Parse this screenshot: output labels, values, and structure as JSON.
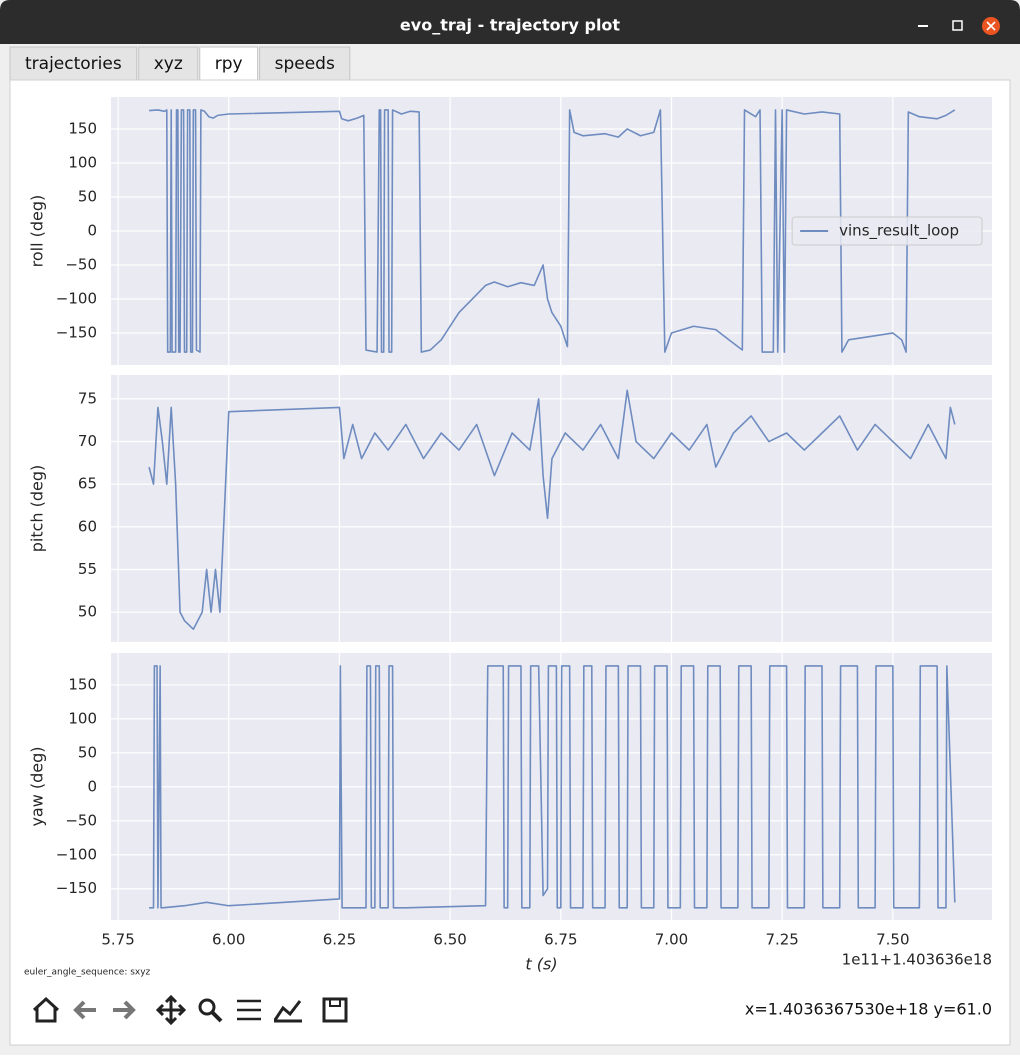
{
  "window": {
    "title": "evo_traj - trajectory plot"
  },
  "tabs": [
    "trajectories",
    "xyz",
    "rpy",
    "speeds"
  ],
  "active_tab": 2,
  "chart_data": [
    {
      "type": "line",
      "ylabel": "roll (deg)",
      "legend": "center right",
      "grid": true,
      "xlim": [
        5.734,
        7.724
      ],
      "ylim": [
        -197,
        197
      ],
      "yticks": [
        {
          "value": -150,
          "label": "−150"
        },
        {
          "value": -100,
          "label": "−100"
        },
        {
          "value": -50,
          "label": "−50"
        },
        0,
        50,
        100,
        150
      ],
      "x": [
        5.82,
        5.84,
        5.855,
        5.86,
        5.862,
        5.868,
        5.87,
        5.872,
        5.88,
        5.882,
        5.885,
        5.887,
        5.89,
        5.893,
        5.898,
        5.9,
        5.905,
        5.907,
        5.912,
        5.914,
        5.918,
        5.92,
        5.925,
        5.927,
        5.935,
        5.937,
        5.945,
        5.955,
        5.965,
        5.975,
        6.0,
        6.25,
        6.255,
        6.27,
        6.29,
        6.305,
        6.31,
        6.335,
        6.34,
        6.343,
        6.345,
        6.35,
        6.352,
        6.36,
        6.362,
        6.368,
        6.37,
        6.39,
        6.41,
        6.43,
        6.435,
        6.455,
        6.48,
        6.5,
        6.52,
        6.55,
        6.58,
        6.6,
        6.63,
        6.66,
        6.69,
        6.71,
        6.72,
        6.73,
        6.75,
        6.765,
        6.77,
        6.78,
        6.8,
        6.85,
        6.88,
        6.9,
        6.93,
        6.96,
        6.975,
        6.985,
        7.0,
        7.05,
        7.1,
        7.13,
        7.16,
        7.165,
        7.19,
        7.2,
        7.205,
        7.23,
        7.235,
        7.24,
        7.25,
        7.255,
        7.26,
        7.3,
        7.34,
        7.38,
        7.385,
        7.4,
        7.45,
        7.5,
        7.52,
        7.53,
        7.535,
        7.56,
        7.6,
        7.62,
        7.64
      ],
      "series": [
        {
          "name": "vins_result_loop",
          "color": "#6f8cc0",
          "values": [
            177,
            178,
            176,
            178,
            -178,
            -178,
            178,
            -178,
            -178,
            178,
            178,
            -178,
            -178,
            178,
            178,
            -178,
            -178,
            178,
            178,
            -178,
            -178,
            178,
            178,
            -175,
            -178,
            178,
            176,
            168,
            166,
            170,
            172,
            176,
            165,
            162,
            166,
            170,
            -175,
            -178,
            178,
            178,
            -178,
            -178,
            178,
            178,
            -178,
            -178,
            178,
            172,
            176,
            175,
            -178,
            -175,
            -160,
            -140,
            -120,
            -100,
            -80,
            -75,
            -82,
            -76,
            -80,
            -50,
            -100,
            -120,
            -140,
            -170,
            178,
            145,
            140,
            143,
            138,
            150,
            140,
            145,
            178,
            -178,
            -150,
            -140,
            -145,
            -160,
            -175,
            178,
            168,
            178,
            -178,
            -178,
            178,
            -178,
            178,
            -178,
            178,
            172,
            175,
            172,
            -178,
            -160,
            -155,
            -150,
            -160,
            -178,
            175,
            168,
            165,
            170,
            178
          ]
        }
      ]
    },
    {
      "type": "line",
      "ylabel": "pitch (deg)",
      "grid": true,
      "xlim": [
        5.734,
        7.724
      ],
      "ylim": [
        46.5,
        77.8
      ],
      "yticks": [
        50,
        55,
        60,
        65,
        70,
        75
      ],
      "x": [
        5.82,
        5.83,
        5.84,
        5.85,
        5.86,
        5.87,
        5.88,
        5.89,
        5.9,
        5.92,
        5.94,
        5.95,
        5.96,
        5.97,
        5.98,
        6.0,
        6.25,
        6.26,
        6.28,
        6.3,
        6.33,
        6.36,
        6.4,
        6.44,
        6.48,
        6.52,
        6.56,
        6.6,
        6.64,
        6.68,
        6.7,
        6.71,
        6.72,
        6.73,
        6.76,
        6.8,
        6.84,
        6.88,
        6.9,
        6.92,
        6.96,
        7.0,
        7.04,
        7.08,
        7.1,
        7.14,
        7.18,
        7.22,
        7.26,
        7.3,
        7.34,
        7.38,
        7.42,
        7.46,
        7.5,
        7.54,
        7.58,
        7.62,
        7.63,
        7.64
      ],
      "series": [
        {
          "color": "#6f8cc0",
          "values": [
            67,
            65,
            74,
            70,
            65,
            74,
            65,
            50,
            49,
            48,
            50,
            55,
            50,
            55,
            50,
            73.5,
            74,
            68,
            72,
            68,
            71,
            69,
            72,
            68,
            71,
            69,
            72,
            66,
            71,
            69,
            75,
            66,
            61,
            68,
            71,
            69,
            72,
            68,
            76,
            70,
            68,
            71,
            69,
            72,
            67,
            71,
            73,
            70,
            71,
            69,
            71,
            73,
            69,
            72,
            70,
            68,
            72,
            68,
            74,
            72
          ]
        }
      ]
    },
    {
      "type": "line",
      "ylabel": "yaw (deg)",
      "xlabel": "t (s)",
      "x_offset_label": "1e11+1.403636e18",
      "grid": true,
      "xlim": [
        5.734,
        7.724
      ],
      "ylim": [
        -196,
        197
      ],
      "xticks": [
        5.75,
        {
          "value": 6,
          "label": "6.00"
        },
        6.25,
        {
          "value": 6.5,
          "label": "6.50"
        },
        6.75,
        {
          "value": 7,
          "label": "7.00"
        },
        7.25,
        {
          "value": 7.5,
          "label": "7.50"
        }
      ],
      "yticks": [
        {
          "value": -150,
          "label": "−150"
        },
        {
          "value": -100,
          "label": "−100"
        },
        {
          "value": -50,
          "label": "−50"
        },
        0,
        50,
        100,
        150
      ],
      "x": [
        5.82,
        5.83,
        5.832,
        5.838,
        5.84,
        5.845,
        5.847,
        5.85,
        5.9,
        5.95,
        6.0,
        6.25,
        6.252,
        6.256,
        6.3,
        6.31,
        6.312,
        6.32,
        6.322,
        6.33,
        6.332,
        6.34,
        6.342,
        6.36,
        6.362,
        6.37,
        6.372,
        6.4,
        6.58,
        6.585,
        6.62,
        6.622,
        6.63,
        6.632,
        6.66,
        6.662,
        6.68,
        6.682,
        6.7,
        6.71,
        6.72,
        6.722,
        6.74,
        6.742,
        6.75,
        6.752,
        6.77,
        6.772,
        6.8,
        6.802,
        6.82,
        6.822,
        6.85,
        6.852,
        6.88,
        6.882,
        6.9,
        6.902,
        6.93,
        6.932,
        6.96,
        6.962,
        6.99,
        6.992,
        7.02,
        7.022,
        7.05,
        7.052,
        7.08,
        7.082,
        7.11,
        7.112,
        7.15,
        7.152,
        7.18,
        7.182,
        7.22,
        7.222,
        7.26,
        7.262,
        7.3,
        7.302,
        7.34,
        7.342,
        7.38,
        7.382,
        7.42,
        7.422,
        7.46,
        7.462,
        7.5,
        7.502,
        7.56,
        7.562,
        7.6,
        7.602,
        7.62,
        7.622,
        7.64
      ],
      "series": [
        {
          "color": "#6f8cc0",
          "values": [
            -178,
            -178,
            178,
            178,
            -178,
            178,
            -178,
            -178,
            -175,
            -170,
            -175,
            -165,
            178,
            -178,
            -178,
            -178,
            178,
            178,
            -178,
            -178,
            178,
            178,
            -178,
            -178,
            178,
            178,
            -178,
            -178,
            -175,
            178,
            178,
            -178,
            -178,
            178,
            178,
            -178,
            -178,
            178,
            178,
            -160,
            -150,
            178,
            178,
            -178,
            -178,
            178,
            178,
            -178,
            -178,
            178,
            178,
            -178,
            -178,
            178,
            178,
            -178,
            -178,
            178,
            178,
            -178,
            -178,
            178,
            178,
            -178,
            -178,
            178,
            178,
            -178,
            -178,
            178,
            178,
            -178,
            -178,
            178,
            178,
            -178,
            -178,
            178,
            178,
            -178,
            -178,
            178,
            178,
            -178,
            -178,
            178,
            178,
            -178,
            -178,
            178,
            178,
            -178,
            -178,
            178,
            178,
            -178,
            -178,
            178,
            -170
          ]
        }
      ]
    }
  ],
  "figure_text": "euler_angle_sequence: sxyz",
  "status": "x=1.4036367530e+18 y=61.0"
}
